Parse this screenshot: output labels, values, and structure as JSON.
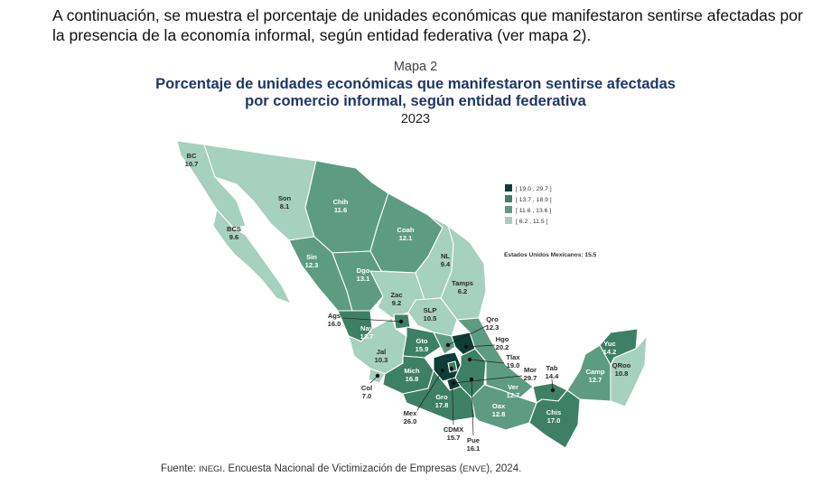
{
  "intro_text": "A continuación, se muestra el porcentaje de unidades económicas que manifestaron sentirse afectadas por la presencia de la economía informal, según entidad federativa (ver mapa 2).",
  "map": {
    "label": "Mapa 2",
    "title_line1": "Porcentaje de unidades económicas que manifestaron sentirse afectadas",
    "title_line2": "por comercio informal, según entidad federativa",
    "year": "2023",
    "national": "Estados Unidos Mexicanos: 15.5",
    "legend": [
      {
        "label": "[ 19.0 , 29.7 ]",
        "color": "#0e3d36"
      },
      {
        "label": "[ 13.7 , 18.9 ]",
        "color": "#3d8065"
      },
      {
        "label": "[ 11.6 , 13.6 ]",
        "color": "#5d9c82"
      },
      {
        "label": "[  6.2 , 11.5 ]",
        "color": "#a6d0bf"
      }
    ],
    "states": [
      {
        "abbr": "BC",
        "value": "10.7"
      },
      {
        "abbr": "BCS",
        "value": "9.6"
      },
      {
        "abbr": "Son",
        "value": "8.1"
      },
      {
        "abbr": "Chih",
        "value": "11.6"
      },
      {
        "abbr": "Coah",
        "value": "12.1"
      },
      {
        "abbr": "NL",
        "value": "9.4"
      },
      {
        "abbr": "Tamps",
        "value": "6.2"
      },
      {
        "abbr": "Sin",
        "value": "12.3"
      },
      {
        "abbr": "Dgo",
        "value": "13.1"
      },
      {
        "abbr": "Zac",
        "value": "9.2"
      },
      {
        "abbr": "SLP",
        "value": "10.5"
      },
      {
        "abbr": "Ags",
        "value": "16.0"
      },
      {
        "abbr": "Nay",
        "value": "13.7"
      },
      {
        "abbr": "Jal",
        "value": "10.3"
      },
      {
        "abbr": "Gto",
        "value": "15.9"
      },
      {
        "abbr": "Qro",
        "value": "12.3"
      },
      {
        "abbr": "Hgo",
        "value": "20.2"
      },
      {
        "abbr": "Tlax",
        "value": "19.0"
      },
      {
        "abbr": "Mor",
        "value": "29.7"
      },
      {
        "abbr": "Col",
        "value": "7.0"
      },
      {
        "abbr": "Mich",
        "value": "16.8"
      },
      {
        "abbr": "Mex",
        "value": "26.0"
      },
      {
        "abbr": "Gro",
        "value": "17.8"
      },
      {
        "abbr": "CDMX",
        "value": "15.7"
      },
      {
        "abbr": "Pue",
        "value": "16.1"
      },
      {
        "abbr": "Ver",
        "value": "12.7"
      },
      {
        "abbr": "Oax",
        "value": "12.8"
      },
      {
        "abbr": "Tab",
        "value": "14.4"
      },
      {
        "abbr": "Chis",
        "value": "17.0"
      },
      {
        "abbr": "Camp",
        "value": "12.7"
      },
      {
        "abbr": "Yuc",
        "value": "14.2"
      },
      {
        "abbr": "QRoo",
        "value": "10.8"
      }
    ]
  },
  "source": {
    "prefix": "Fuente: ",
    "org": "INEGI",
    "mid": ". Encuesta Nacional de Victimización de Empresas (",
    "acronym": "ENVE",
    "suffix": "), 2024."
  }
}
